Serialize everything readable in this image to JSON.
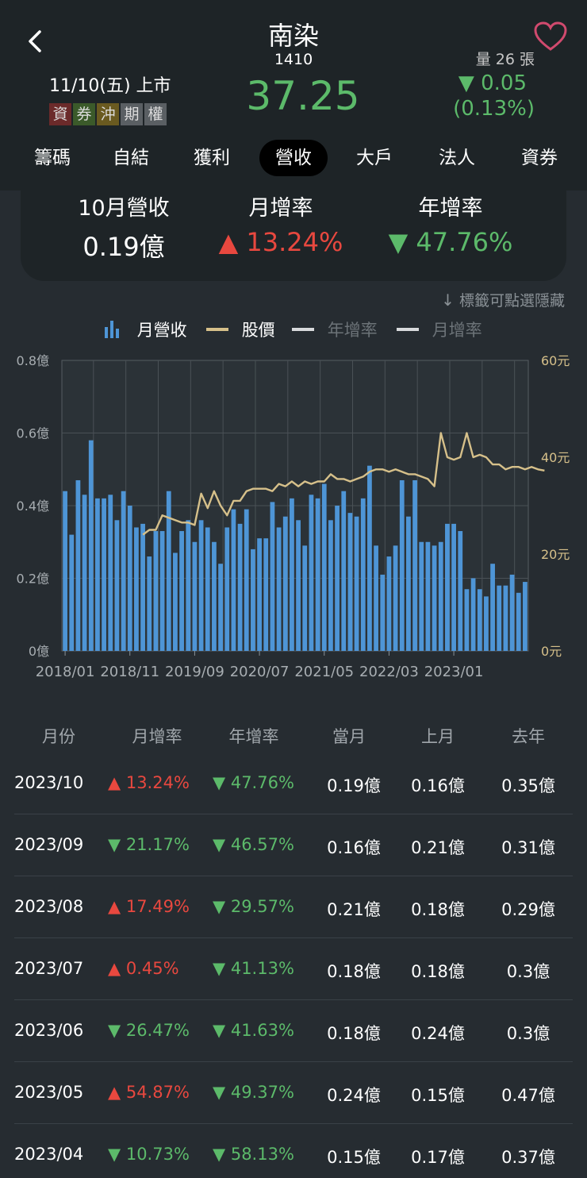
{
  "header": {
    "stock_name": "南染",
    "stock_code": "1410",
    "listing": "11/10(五) 上市",
    "tags": [
      {
        "label": "資",
        "color": "#6b2a2a"
      },
      {
        "label": "券",
        "color": "#3b5a2a"
      },
      {
        "label": "沖",
        "color": "#6a5a20"
      },
      {
        "label": "期",
        "color": "#5a5f63"
      },
      {
        "label": "權",
        "color": "#5a5f63"
      }
    ],
    "price": "37.25",
    "volume": "量 26 張",
    "change_value": "▼ 0.05",
    "change_percent": "(0.13%)"
  },
  "tabs": [
    {
      "label": "籌碼",
      "active": false
    },
    {
      "label": "自結",
      "active": false
    },
    {
      "label": "獲利",
      "active": false
    },
    {
      "label": "營收",
      "active": true
    },
    {
      "label": "大戶",
      "active": false
    },
    {
      "label": "法人",
      "active": false
    },
    {
      "label": "資券",
      "active": false
    }
  ],
  "summary": {
    "revenue_label": "10月營收",
    "revenue_value": "0.19億",
    "mom_label": "月增率",
    "mom_value": "▲ 13.24%",
    "yoy_label": "年增率",
    "yoy_value": "▼ 47.76%"
  },
  "hint_text": "標籤可點選隱藏",
  "legend": {
    "revenue": "月營收",
    "price": "股價",
    "yoy": "年增率",
    "mom": "月增率"
  },
  "colors": {
    "bar": "#4e95d6",
    "price_line": "#d6c08a",
    "up": "#e8483f",
    "down": "#5cba6a"
  },
  "chart_data": {
    "type": "bar",
    "x_ticks": [
      "2018/01",
      "2018/11",
      "2019/09",
      "2020/07",
      "2021/05",
      "2022/03",
      "2023/01"
    ],
    "y_left_ticks": [
      "0億",
      "0.2億",
      "0.4億",
      "0.6億",
      "0.8億"
    ],
    "y_right_ticks": [
      "0元",
      "20元",
      "40元",
      "60元"
    ],
    "y_left_range": [
      0,
      0.8
    ],
    "y_right_range": [
      0,
      60
    ],
    "series": [
      {
        "name": "月營收",
        "type": "bar",
        "values": [
          0.44,
          0.32,
          0.47,
          0.43,
          0.58,
          0.42,
          0.42,
          0.43,
          0.36,
          0.44,
          0.4,
          0.34,
          0.35,
          0.26,
          0.33,
          0.33,
          0.44,
          0.27,
          0.33,
          0.36,
          0.3,
          0.36,
          0.34,
          0.3,
          0.24,
          0.34,
          0.39,
          0.35,
          0.39,
          0.28,
          0.31,
          0.31,
          0.41,
          0.34,
          0.37,
          0.42,
          0.36,
          0.29,
          0.43,
          0.42,
          0.46,
          0.36,
          0.4,
          0.44,
          0.38,
          0.37,
          0.42,
          0.51,
          0.29,
          0.21,
          0.26,
          0.29,
          0.47,
          0.37,
          0.47,
          0.3,
          0.3,
          0.29,
          0.3,
          0.35,
          0.35,
          0.33,
          0.17,
          0.2,
          0.17,
          0.15,
          0.24,
          0.18,
          0.18,
          0.21,
          0.16,
          0.19
        ]
      },
      {
        "name": "股價",
        "type": "line",
        "start_index": 12,
        "values": [
          24,
          25,
          25,
          28,
          27.5,
          27,
          26.5,
          26.5,
          26,
          32.5,
          29.5,
          33,
          30,
          28,
          31,
          31,
          33,
          33.5,
          33.5,
          33.5,
          33,
          34.5,
          34,
          35,
          34,
          35,
          34.5,
          35,
          35,
          36.5,
          35.5,
          35.5,
          35,
          35.5,
          36,
          37,
          37.5,
          37.5,
          37,
          37.5,
          37,
          36.5,
          36.5,
          36,
          35.5,
          34,
          45,
          40,
          39.5,
          40,
          45,
          40,
          40.5,
          40,
          38.5,
          38.5,
          37.5,
          38,
          38,
          37.5,
          38,
          37.5,
          37.25
        ]
      }
    ]
  },
  "table": {
    "headers": [
      "月份",
      "月增率",
      "年增率",
      "當月",
      "上月",
      "去年"
    ],
    "rows": [
      {
        "month": "2023/10",
        "mom": "13.24%",
        "mom_dir": "up",
        "yoy": "47.76%",
        "yoy_dir": "down",
        "current": "0.19億",
        "prev": "0.16億",
        "last_year": "0.35億"
      },
      {
        "month": "2023/09",
        "mom": "21.17%",
        "mom_dir": "down",
        "yoy": "46.57%",
        "yoy_dir": "down",
        "current": "0.16億",
        "prev": "0.21億",
        "last_year": "0.31億"
      },
      {
        "month": "2023/08",
        "mom": "17.49%",
        "mom_dir": "up",
        "yoy": "29.57%",
        "yoy_dir": "down",
        "current": "0.21億",
        "prev": "0.18億",
        "last_year": "0.29億"
      },
      {
        "month": "2023/07",
        "mom": "0.45%",
        "mom_dir": "up",
        "yoy": "41.13%",
        "yoy_dir": "down",
        "current": "0.18億",
        "prev": "0.18億",
        "last_year": "0.3億"
      },
      {
        "month": "2023/06",
        "mom": "26.47%",
        "mom_dir": "down",
        "yoy": "41.63%",
        "yoy_dir": "down",
        "current": "0.18億",
        "prev": "0.24億",
        "last_year": "0.3億"
      },
      {
        "month": "2023/05",
        "mom": "54.87%",
        "mom_dir": "up",
        "yoy": "49.37%",
        "yoy_dir": "down",
        "current": "0.24億",
        "prev": "0.15億",
        "last_year": "0.47億"
      },
      {
        "month": "2023/04",
        "mom": "10.73%",
        "mom_dir": "down",
        "yoy": "58.13%",
        "yoy_dir": "down",
        "current": "0.15億",
        "prev": "0.17億",
        "last_year": "0.37億"
      }
    ]
  }
}
